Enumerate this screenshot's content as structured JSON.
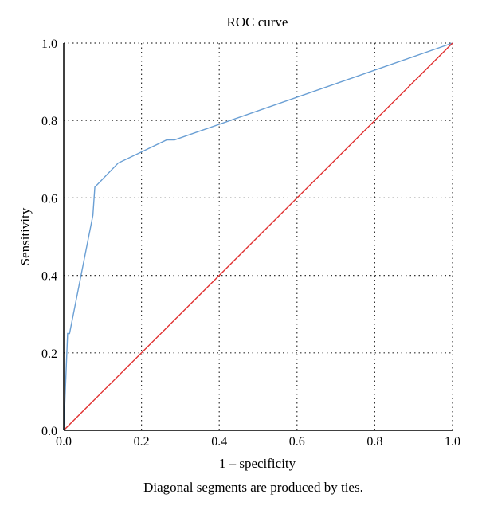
{
  "chart_data": {
    "type": "line",
    "title": "ROC curve",
    "xlabel": "1 – specificity",
    "ylabel": "Sensitivity",
    "xlim": [
      0.0,
      1.0
    ],
    "ylim": [
      0.0,
      1.0
    ],
    "x_ticks": [
      "0.0",
      "0.2",
      "0.4",
      "0.6",
      "0.8",
      "1.0"
    ],
    "y_ticks": [
      "0.0",
      "0.2",
      "0.4",
      "0.6",
      "0.8",
      "1.0"
    ],
    "grid": true,
    "footnote": "Diagonal segments are produced by ties.",
    "series": [
      {
        "color": "#6a9fd4",
        "points": [
          [
            0.0,
            0.0
          ],
          [
            0.01,
            0.25
          ],
          [
            0.015,
            0.25
          ],
          [
            0.075,
            0.555
          ],
          [
            0.08,
            0.628
          ],
          [
            0.14,
            0.69
          ],
          [
            0.265,
            0.75
          ],
          [
            0.285,
            0.75
          ],
          [
            1.0,
            1.0
          ]
        ]
      },
      {
        "color": "#e03030",
        "points": [
          [
            0.0,
            0.0
          ],
          [
            1.0,
            1.0
          ]
        ]
      }
    ]
  }
}
